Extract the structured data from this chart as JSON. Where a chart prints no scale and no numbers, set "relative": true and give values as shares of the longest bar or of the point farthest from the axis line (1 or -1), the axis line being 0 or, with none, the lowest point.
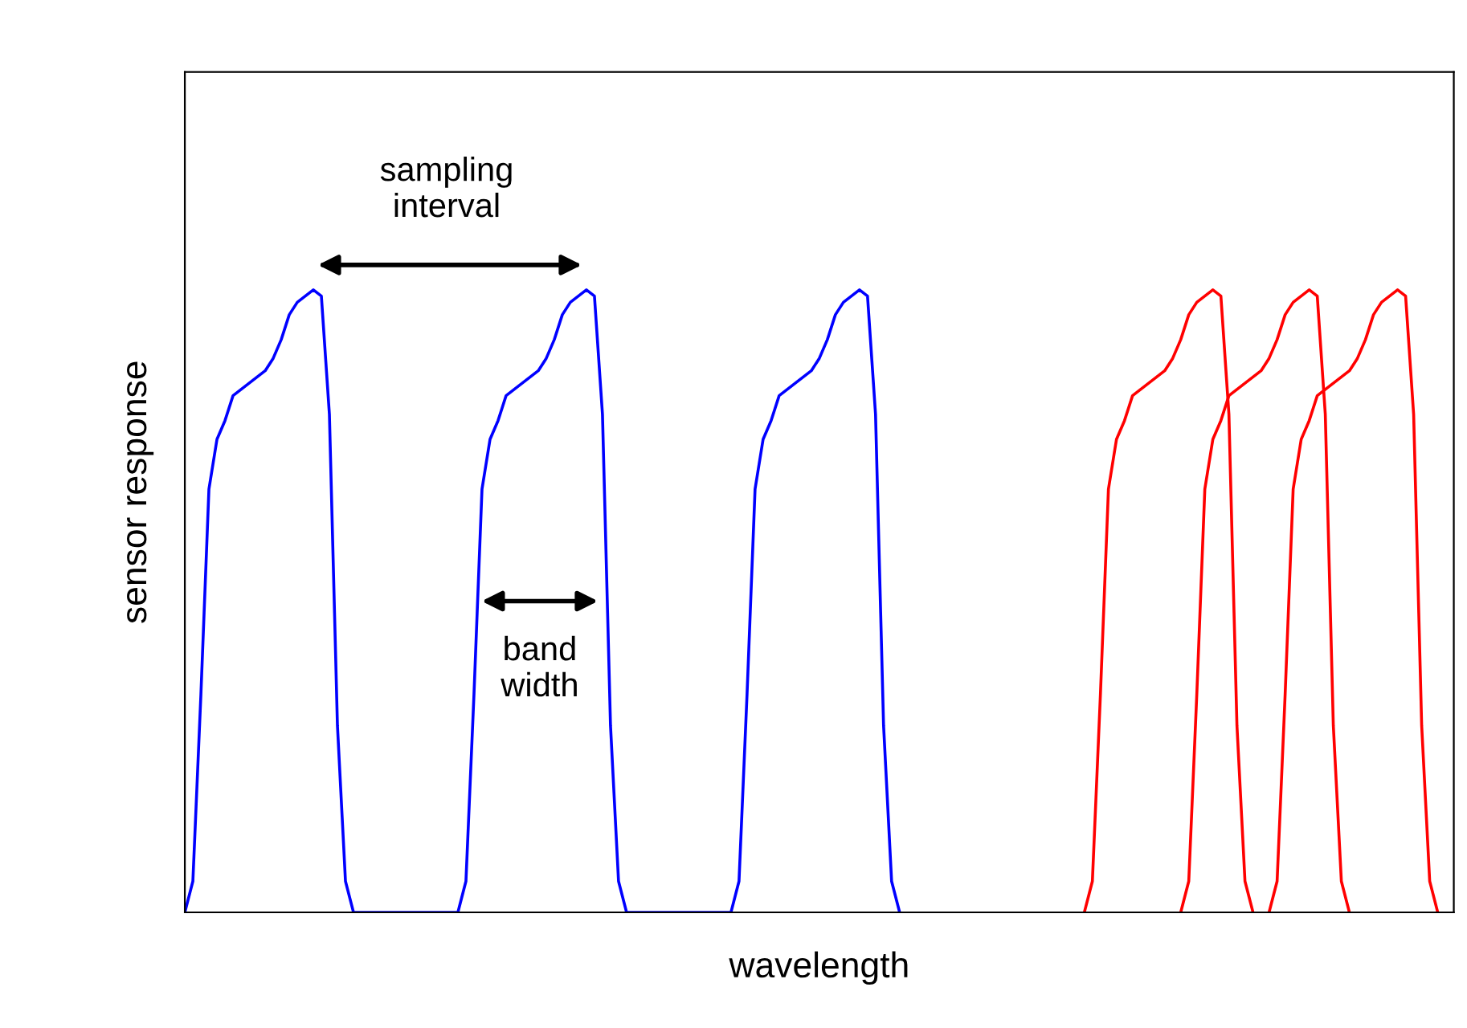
{
  "chart_data": {
    "type": "line",
    "relative": true,
    "xlabel": "wavelength",
    "ylabel": "sensor response",
    "legend": false,
    "grid": false,
    "marker": "none",
    "line_style": "solid",
    "categories": [
      null,
      null,
      null,
      null,
      null,
      null,
      null,
      null,
      null,
      null,
      null,
      null,
      null,
      null,
      null,
      null,
      null,
      null,
      null,
      null,
      null,
      null,
      null,
      null,
      null,
      null,
      null,
      null,
      null,
      null,
      null,
      null,
      null,
      null,
      null,
      null,
      null,
      null,
      null,
      null,
      null,
      null,
      null,
      null,
      null,
      null,
      null,
      null,
      null,
      null,
      null,
      null,
      null,
      null,
      null,
      null,
      null,
      null,
      null,
      null,
      null,
      null,
      null,
      null,
      null,
      null,
      null,
      null,
      null,
      null,
      null,
      null,
      null,
      null,
      null,
      null,
      null,
      null,
      null,
      null,
      null,
      null,
      null,
      null,
      null,
      null,
      null,
      null,
      null,
      null,
      null,
      null,
      null,
      null,
      null,
      null,
      null,
      null,
      null,
      null,
      null,
      null,
      null,
      null,
      null,
      null,
      null,
      null,
      null,
      null,
      null,
      null,
      null,
      null,
      null,
      null,
      null,
      null,
      null,
      null,
      null,
      null,
      null,
      null,
      null,
      null,
      null,
      null,
      null,
      null,
      null,
      null,
      null,
      null,
      null,
      null,
      null,
      null,
      null,
      null,
      null,
      null,
      null,
      null,
      null,
      null,
      null,
      null,
      null,
      null,
      null,
      null,
      null,
      null,
      null,
      null,
      null,
      null,
      null
    ],
    "series": [
      {
        "color": "#0000ff",
        "values": [
          0,
          0.05,
          0.35,
          0.68,
          0.76,
          0.79,
          0.83,
          0.84,
          0.85,
          0.86,
          0.87,
          0.89,
          0.92,
          0.96,
          0.98,
          0.99,
          1,
          0.99,
          0.8,
          0.3,
          0.05,
          0,
          0,
          0,
          0,
          0,
          0,
          0,
          0,
          0,
          0,
          0,
          0,
          0,
          0,
          0.05,
          0.35,
          0.68,
          0.76,
          0.79,
          0.83,
          0.84,
          0.85,
          0.86,
          0.87,
          0.89,
          0.92,
          0.96,
          0.98,
          0.99,
          1,
          0.99,
          0.8,
          0.3,
          0.05,
          0,
          0,
          0,
          0,
          0,
          0,
          0,
          0,
          0,
          0,
          0,
          0,
          0,
          0,
          0.05,
          0.35,
          0.68,
          0.76,
          0.79,
          0.83,
          0.84,
          0.85,
          0.86,
          0.87,
          0.89,
          0.92,
          0.96,
          0.98,
          0.99,
          1,
          0.99,
          0.8,
          0.3,
          0.05,
          0,
          null,
          null,
          null,
          null,
          null,
          null,
          null,
          null,
          null,
          null,
          null,
          null,
          null,
          null,
          null,
          null,
          null,
          null,
          null,
          null,
          null,
          null,
          null,
          null,
          null,
          null,
          null,
          null,
          null,
          null,
          null,
          null,
          null,
          null,
          null,
          null,
          null,
          null,
          null,
          null,
          null,
          null,
          null,
          null,
          null,
          null,
          null,
          null,
          null,
          null,
          null,
          null,
          null,
          null,
          null,
          null,
          null,
          null,
          null,
          null,
          null,
          null,
          null,
          null,
          null,
          null,
          null,
          null,
          null
        ]
      },
      {
        "color": "#ff0000",
        "values": [
          null,
          null,
          null,
          null,
          null,
          null,
          null,
          null,
          null,
          null,
          null,
          null,
          null,
          null,
          null,
          null,
          null,
          null,
          null,
          null,
          null,
          null,
          null,
          null,
          null,
          null,
          null,
          null,
          null,
          null,
          null,
          null,
          null,
          null,
          null,
          null,
          null,
          null,
          null,
          null,
          null,
          null,
          null,
          null,
          null,
          null,
          null,
          null,
          null,
          null,
          null,
          null,
          null,
          null,
          null,
          null,
          null,
          null,
          null,
          null,
          null,
          null,
          null,
          null,
          null,
          null,
          null,
          null,
          null,
          null,
          null,
          null,
          null,
          null,
          null,
          null,
          null,
          null,
          null,
          null,
          null,
          null,
          null,
          null,
          null,
          null,
          null,
          null,
          null,
          null,
          null,
          null,
          null,
          null,
          null,
          null,
          null,
          null,
          null,
          null,
          null,
          null,
          null,
          null,
          null,
          null,
          null,
          null,
          null,
          null,
          null,
          null,
          0,
          0.05,
          0.35,
          0.68,
          0.76,
          0.79,
          0.83,
          0.84,
          0.85,
          0.86,
          0.87,
          0.89,
          0.92,
          0.96,
          0.98,
          0.99,
          1,
          0.99,
          0.8,
          0.3,
          0.05,
          0,
          null,
          null,
          null,
          null,
          null,
          null,
          null,
          null,
          null,
          null,
          null,
          null,
          null,
          null,
          null,
          null,
          null,
          null,
          null,
          null,
          null,
          null,
          null,
          null,
          null
        ]
      },
      {
        "color": "#ff0000",
        "values": [
          null,
          null,
          null,
          null,
          null,
          null,
          null,
          null,
          null,
          null,
          null,
          null,
          null,
          null,
          null,
          null,
          null,
          null,
          null,
          null,
          null,
          null,
          null,
          null,
          null,
          null,
          null,
          null,
          null,
          null,
          null,
          null,
          null,
          null,
          null,
          null,
          null,
          null,
          null,
          null,
          null,
          null,
          null,
          null,
          null,
          null,
          null,
          null,
          null,
          null,
          null,
          null,
          null,
          null,
          null,
          null,
          null,
          null,
          null,
          null,
          null,
          null,
          null,
          null,
          null,
          null,
          null,
          null,
          null,
          null,
          null,
          null,
          null,
          null,
          null,
          null,
          null,
          null,
          null,
          null,
          null,
          null,
          null,
          null,
          null,
          null,
          null,
          null,
          null,
          null,
          null,
          null,
          null,
          null,
          null,
          null,
          null,
          null,
          null,
          null,
          null,
          null,
          null,
          null,
          null,
          null,
          null,
          null,
          null,
          null,
          null,
          null,
          null,
          null,
          null,
          null,
          null,
          null,
          null,
          null,
          null,
          null,
          null,
          null,
          0,
          0.05,
          0.35,
          0.68,
          0.76,
          0.79,
          0.83,
          0.84,
          0.85,
          0.86,
          0.87,
          0.89,
          0.92,
          0.96,
          0.98,
          0.99,
          1,
          0.99,
          0.8,
          0.3,
          0.05,
          0,
          null,
          null,
          null,
          null,
          null,
          null,
          null,
          null,
          null,
          null,
          null,
          null,
          null
        ]
      },
      {
        "color": "#ff0000",
        "values": [
          null,
          null,
          null,
          null,
          null,
          null,
          null,
          null,
          null,
          null,
          null,
          null,
          null,
          null,
          null,
          null,
          null,
          null,
          null,
          null,
          null,
          null,
          null,
          null,
          null,
          null,
          null,
          null,
          null,
          null,
          null,
          null,
          null,
          null,
          null,
          null,
          null,
          null,
          null,
          null,
          null,
          null,
          null,
          null,
          null,
          null,
          null,
          null,
          null,
          null,
          null,
          null,
          null,
          null,
          null,
          null,
          null,
          null,
          null,
          null,
          null,
          null,
          null,
          null,
          null,
          null,
          null,
          null,
          null,
          null,
          null,
          null,
          null,
          null,
          null,
          null,
          null,
          null,
          null,
          null,
          null,
          null,
          null,
          null,
          null,
          null,
          null,
          null,
          null,
          null,
          null,
          null,
          null,
          null,
          null,
          null,
          null,
          null,
          null,
          null,
          null,
          null,
          null,
          null,
          null,
          null,
          null,
          null,
          null,
          null,
          null,
          null,
          null,
          null,
          null,
          null,
          null,
          null,
          null,
          null,
          null,
          null,
          null,
          null,
          null,
          null,
          null,
          null,
          null,
          null,
          null,
          null,
          null,
          null,
          null,
          0,
          0.05,
          0.35,
          0.68,
          0.76,
          0.79,
          0.83,
          0.84,
          0.85,
          0.86,
          0.87,
          0.89,
          0.92,
          0.96,
          0.98,
          0.99,
          1,
          0.99,
          0.8,
          0.3,
          0.05,
          0,
          null,
          null
        ]
      }
    ],
    "annotations": [
      "sampling\ninterval",
      "band\nwidth"
    ]
  }
}
